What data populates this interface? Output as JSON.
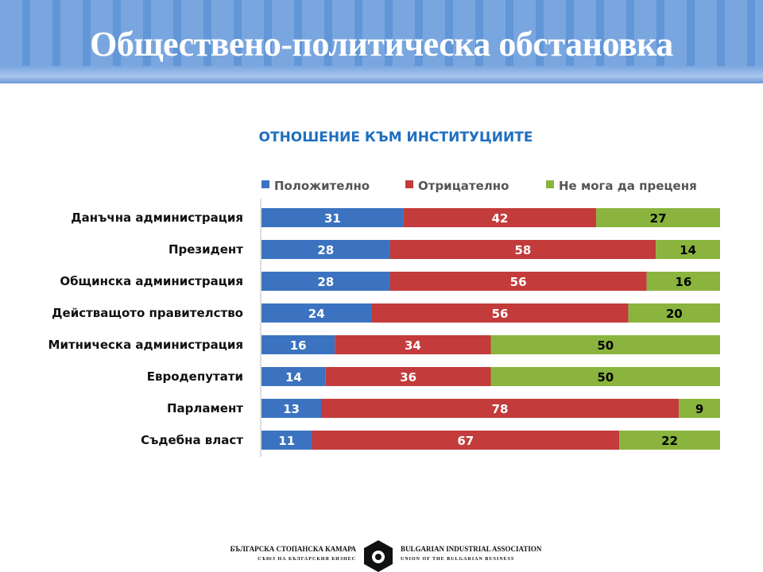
{
  "title": "Обществено-политическа обстановка",
  "chart_data": {
    "type": "bar",
    "stacked": true,
    "orientation": "horizontal",
    "title": "ОТНОШЕНИЕ КЪМ ИНСТИТУЦИИТЕ",
    "legend_position": "top",
    "categories": [
      "Данъчна администрация",
      "Президент",
      "Общинска администрация",
      "Действащото правителство",
      "Митническа администрация",
      "Евродепутати",
      "Парламент",
      "Съдебна власт"
    ],
    "series": [
      {
        "name": "Положително",
        "color": "#3b73c0",
        "label_color": "#ffffff",
        "values": [
          31,
          28,
          28,
          24,
          16,
          14,
          13,
          11
        ]
      },
      {
        "name": "Отрицателно",
        "color": "#c33b3b",
        "label_color": "#ffffff",
        "values": [
          42,
          58,
          56,
          56,
          34,
          36,
          78,
          67
        ]
      },
      {
        "name": "Не мога да преценя",
        "color": "#8ab43e",
        "label_color": "#000000",
        "values": [
          27,
          14,
          16,
          20,
          50,
          50,
          9,
          22
        ]
      }
    ],
    "xlim": [
      0,
      100
    ]
  },
  "logo": {
    "bg_line1": "БЪЛГАРСКА СТОПАНСКА КАМАРА",
    "bg_line2": "СЪЮЗ НА БЪЛГАРСКИЯ БИЗНЕС",
    "en_line1": "BULGARIAN INDUSTRIAL ASSOCIATION",
    "en_line2": "UNION OF THE BULGARIAN BUSINESS"
  }
}
